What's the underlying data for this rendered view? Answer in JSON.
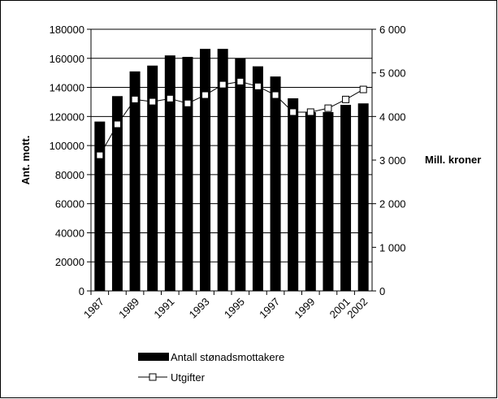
{
  "chart_data": {
    "type": "bar+line",
    "y_label": "Ant. mott.",
    "y2_label": "Mill. kroner",
    "categories": [
      "1987",
      null,
      "1989",
      null,
      "1991",
      null,
      "1993",
      null,
      "1995",
      null,
      "1997",
      null,
      "1999",
      null,
      "2001",
      "2002"
    ],
    "series": [
      {
        "name": "Antall stønadsmottakere",
        "type": "bar",
        "color": "#000000",
        "values": [
          116500,
          134000,
          151000,
          155000,
          162000,
          161000,
          166500,
          166500,
          160000,
          154500,
          147500,
          132500,
          123000,
          123000,
          128000,
          129000
        ]
      },
      {
        "name": "Utgifter",
        "type": "line",
        "axis": "y2",
        "color": "#000000",
        "values": [
          3110,
          3820,
          4390,
          4340,
          4410,
          4300,
          4490,
          4730,
          4800,
          4690,
          4490,
          4100,
          4100,
          4190,
          4390,
          4620
        ]
      }
    ],
    "ylim": [
      0,
      180000
    ],
    "yticks": [
      0,
      20000,
      40000,
      60000,
      80000,
      100000,
      120000,
      140000,
      160000,
      180000
    ],
    "y2lim": [
      0,
      6000
    ],
    "y2ticks": [
      0,
      {
        "value": 1000,
        "label": "1 000"
      },
      {
        "value": 2000,
        "label": "2 000"
      },
      {
        "value": 3000,
        "label": "3 000"
      },
      {
        "value": 4000,
        "label": "4 000"
      },
      {
        "value": 5000,
        "label": "5 000"
      },
      {
        "value": 6000,
        "label": "6 000"
      }
    ],
    "grid": true,
    "legend": "bottom"
  }
}
